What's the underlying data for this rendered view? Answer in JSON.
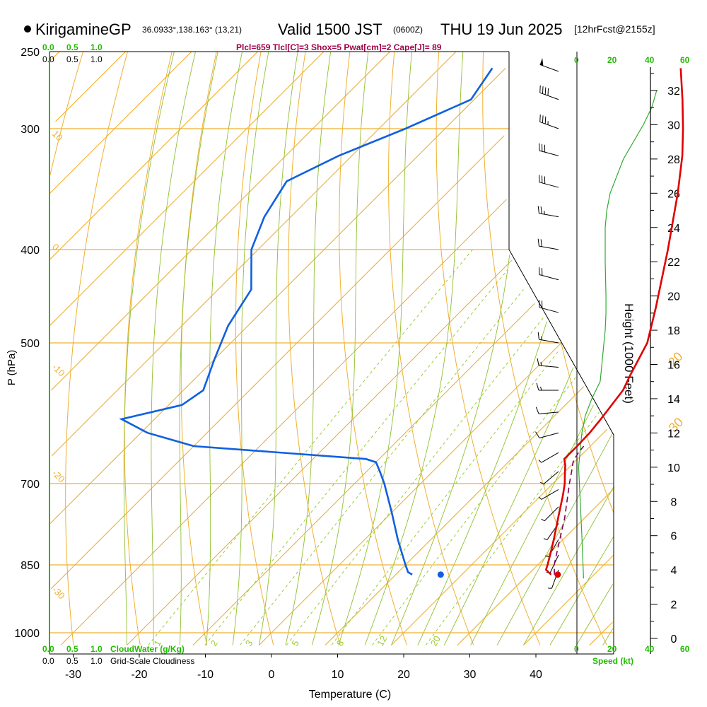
{
  "header": {
    "site": "KirigamineGP",
    "coords": "36.0933°,138.163° (13,21)",
    "valid": "Valid 1500 JST",
    "zulu": "(0600Z)",
    "date": "THU 19 Jun 2025",
    "forecast": "[12hrFcst@2155z]",
    "stats": "Plcl=659 Tlcl[C]=3 Shox=5 Pwat[cm]=2 Cape[J]= 89"
  },
  "colors": {
    "temperature": "#e00000",
    "dewpoint": "#1060e0",
    "isotherm": "#f0b030",
    "dry_adiabat": "#90c030",
    "mixing_ratio": "#99cc33",
    "parcel": "#800060",
    "label_green": "#22bb00"
  },
  "labels": {
    "cloudwater_top_green": [
      "0.0",
      "0.5",
      "1.0"
    ],
    "cloudiness_top_black": [
      "0.0",
      "0.5",
      "1.0"
    ],
    "cloudwater_bottom_green": [
      "0.0",
      "0.5",
      "1.0"
    ],
    "cloudwater_caption": "CloudWater (g/Kg)",
    "cloudiness_bottom_black": [
      "0.0",
      "0.5",
      "1.0"
    ],
    "cloudiness_caption": "Grid-Scale Cloudiness",
    "speed_ticks_top": [
      "0",
      "20",
      "40",
      "60"
    ],
    "speed_ticks_bottom": [
      "0",
      "20",
      "40",
      "60"
    ],
    "speed_caption": "Speed (kt)",
    "height_axis_label": "Height (1000 Feet)",
    "height_ticks": [
      "32",
      "30",
      "28",
      "26",
      "24",
      "22",
      "20",
      "18",
      "16",
      "14",
      "12",
      "10",
      "8",
      "6",
      "4",
      "2",
      "0"
    ]
  },
  "chart_data": {
    "type": "line",
    "subtype": "skew-T log-P sounding",
    "xlabel": "Temperature (C)",
    "ylabel": "P (hPa)",
    "x_ticks": [
      -30,
      -20,
      -10,
      0,
      10,
      20,
      30,
      40
    ],
    "y_ticks": [
      250,
      300,
      400,
      500,
      700,
      850,
      1000
    ],
    "ylim": [
      1000,
      250
    ],
    "isotherm_labels": [
      "0",
      "10",
      "20",
      "30"
    ],
    "dry_adiabat_labels": [
      "10",
      "0",
      "-10",
      "-20",
      "-30"
    ],
    "mixing_ratio_labels": [
      "1",
      "2",
      "3",
      "5",
      "8",
      "12",
      "20"
    ],
    "series": [
      {
        "key": "temperature",
        "p": [
          870,
          860,
          850,
          820,
          800,
          760,
          720,
          700,
          690,
          670,
          660,
          655,
          640,
          620,
          600,
          560,
          540,
          500,
          460,
          400,
          350,
          320,
          300,
          280,
          260
        ],
        "t": [
          33.5,
          32.0,
          31.5,
          29.8,
          28.6,
          26.0,
          23.3,
          21.8,
          20.9,
          19.1,
          18.0,
          18.0,
          18.0,
          17.9,
          17.5,
          16.5,
          15.3,
          13.0,
          9.0,
          2.0,
          -5.0,
          -10.0,
          -14.0,
          -18.5,
          -23.5
        ]
      },
      {
        "key": "dewpoint",
        "p": [
          870,
          865,
          850,
          800,
          750,
          700,
          680,
          665,
          660,
          640,
          620,
          600,
          580,
          560,
          520,
          480,
          440,
          400,
          370,
          340,
          320,
          300,
          280,
          260
        ],
        "t": [
          12.5,
          11.5,
          10.0,
          5.0,
          0.0,
          -5.5,
          -8.0,
          -10.0,
          -12.0,
          -40.0,
          -49.0,
          -55.0,
          -48.0,
          -47.0,
          -50.0,
          -53.0,
          -55.0,
          -61.0,
          -64.0,
          -66.0,
          -62.0,
          -56.0,
          -50.5,
          -52.0
        ]
      },
      {
        "key": "parcel",
        "p": [
          870,
          850,
          800,
          760,
          700,
          680,
          665,
          659,
          650,
          640
        ],
        "t": [
          34.0,
          32.5,
          29.5,
          27.0,
          22.5,
          21.0,
          19.8,
          19.5,
          19.2,
          19.0
        ]
      }
    ],
    "surface_points": [
      {
        "name": "surface temperature",
        "p": 870,
        "t": 34.5
      },
      {
        "name": "surface dewpoint",
        "p": 870,
        "t": 16.8
      }
    ],
    "height_profile_kft_to_speed_kt": [
      [
        3.5,
        4
      ],
      [
        6,
        3
      ],
      [
        8,
        2
      ],
      [
        10,
        1
      ],
      [
        11,
        2
      ],
      [
        12,
        3
      ],
      [
        13,
        5
      ],
      [
        14,
        9
      ],
      [
        15,
        14
      ],
      [
        16,
        15
      ],
      [
        17,
        16
      ],
      [
        18,
        17
      ],
      [
        19,
        17.5
      ],
      [
        20,
        17.5
      ],
      [
        22,
        17
      ],
      [
        24,
        17
      ],
      [
        25,
        18
      ],
      [
        26,
        20
      ],
      [
        28,
        28
      ],
      [
        30,
        40
      ],
      [
        31,
        45
      ],
      [
        32,
        48
      ],
      [
        34,
        50
      ]
    ],
    "wind_barbs": [
      {
        "p": 262,
        "dir": 290,
        "kt": 50
      },
      {
        "p": 280,
        "dir": 290,
        "kt": 40
      },
      {
        "p": 300,
        "dir": 290,
        "kt": 35
      },
      {
        "p": 320,
        "dir": 285,
        "kt": 30
      },
      {
        "p": 345,
        "dir": 285,
        "kt": 30
      },
      {
        "p": 370,
        "dir": 280,
        "kt": 25
      },
      {
        "p": 400,
        "dir": 280,
        "kt": 20
      },
      {
        "p": 430,
        "dir": 285,
        "kt": 20
      },
      {
        "p": 465,
        "dir": 285,
        "kt": 20
      },
      {
        "p": 500,
        "dir": 280,
        "kt": 15
      },
      {
        "p": 530,
        "dir": 275,
        "kt": 15
      },
      {
        "p": 560,
        "dir": 270,
        "kt": 15
      },
      {
        "p": 590,
        "dir": 265,
        "kt": 10
      },
      {
        "p": 620,
        "dir": 255,
        "kt": 10
      },
      {
        "p": 650,
        "dir": 240,
        "kt": 5
      },
      {
        "p": 680,
        "dir": 230,
        "kt": 5
      },
      {
        "p": 710,
        "dir": 240,
        "kt": 5
      },
      {
        "p": 740,
        "dir": 225,
        "kt": 5
      },
      {
        "p": 770,
        "dir": 215,
        "kt": 5
      },
      {
        "p": 800,
        "dir": 210,
        "kt": 5
      },
      {
        "p": 830,
        "dir": 205,
        "kt": 5
      },
      {
        "p": 860,
        "dir": 200,
        "kt": 5
      }
    ]
  }
}
